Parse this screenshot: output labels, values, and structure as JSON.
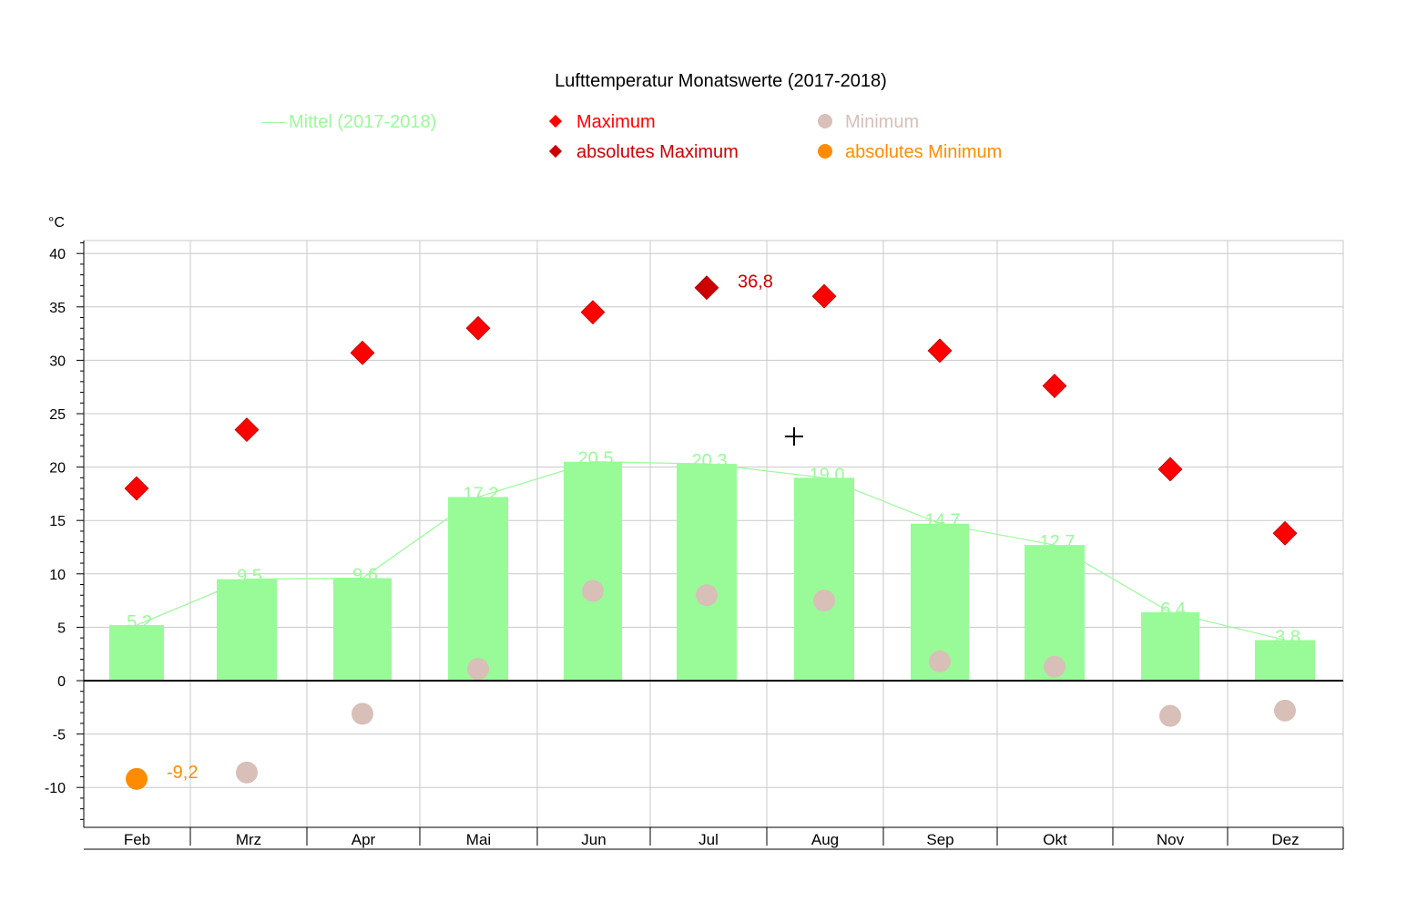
{
  "chart_data": {
    "type": "bar",
    "title": "Lufttemperatur Monatswerte (2017-2018)",
    "ylabel": "°C",
    "ylim": [
      -14,
      41
    ],
    "yticks": [
      -10,
      -5,
      0,
      5,
      10,
      15,
      20,
      25,
      30,
      35,
      40
    ],
    "categories": [
      "Feb",
      "Mrz",
      "Apr",
      "Mai",
      "Jun",
      "Jul",
      "Aug",
      "Sep",
      "Okt",
      "Nov",
      "Dez"
    ],
    "series": [
      {
        "name": "Mittel (2017-2018)",
        "kind": "bar+line",
        "color": "#98fb98",
        "values": [
          5.2,
          9.5,
          9.6,
          17.2,
          20.5,
          20.3,
          19.0,
          14.7,
          12.7,
          6.4,
          3.8
        ],
        "labels": [
          "5,2",
          "9,5",
          "9,6",
          "17,2",
          "20,5",
          "20,3",
          "19,0",
          "14,7",
          "12,7",
          "6,4",
          "3,8"
        ]
      },
      {
        "name": "Maximum",
        "kind": "diamond",
        "color": "#ff0000",
        "values": [
          18.0,
          23.5,
          30.7,
          33.0,
          34.5,
          36.8,
          36.0,
          30.9,
          27.6,
          19.8,
          13.8
        ]
      },
      {
        "name": "Minimum",
        "kind": "dot",
        "color": "#d8bfb8",
        "values": [
          -9.2,
          -8.6,
          -3.1,
          1.1,
          8.4,
          8.0,
          7.5,
          1.8,
          1.3,
          -3.3,
          -2.8
        ]
      }
    ],
    "absolute_max": {
      "name": "absolutes Maximum",
      "category": "Jul",
      "value": 36.8,
      "label": "36,8",
      "color": "#cc0000"
    },
    "absolute_min": {
      "name": "absolutes Minimum",
      "category": "Feb",
      "value": -9.2,
      "label": "-9,2",
      "color": "#ff8c00"
    },
    "grid": true,
    "legend": "top"
  },
  "legend": {
    "mittel": "Mittel (2017-2018)",
    "maximum": "Maximum",
    "abs_maximum": "absolutes Maximum",
    "minimum": "Minimum",
    "abs_minimum": "absolutes Minimum"
  },
  "colors": {
    "mittel": "#98fb98",
    "maximum": "#ff0000",
    "abs_maximum": "#cc0000",
    "minimum": "#d8bfb8",
    "abs_minimum": "#ff8c00"
  }
}
